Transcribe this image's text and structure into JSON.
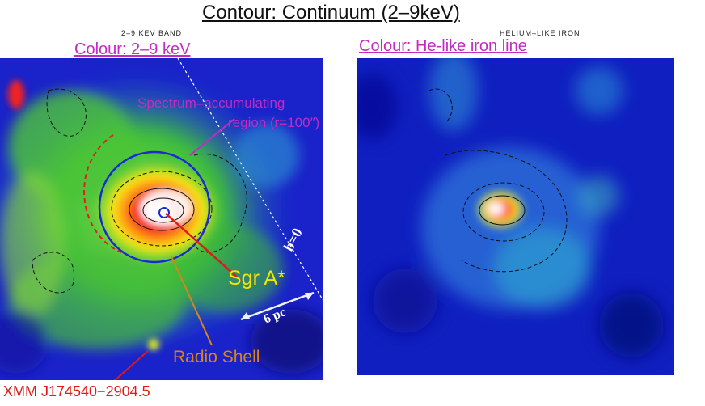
{
  "figure": {
    "title": "Contour: Continuum (2–9keV)",
    "left_panel": {
      "caption": "2–9 KEV BAND",
      "colour_label": "Colour: 2–9 keV",
      "annotations": {
        "region_line1": "Spectrum–accumulating",
        "region_line2": "region (r=100″)",
        "sgr_a": "Sgr A*",
        "radio_shell": "Radio Shell",
        "xmm_source": "XMM J174540−2904.5",
        "b_zero": "b=0",
        "scale": "6 pc"
      }
    },
    "right_panel": {
      "caption": "HELIUM–LIKE IRON",
      "colour_label": "Colour: He-like iron line"
    },
    "colors": {
      "annotation_magenta": "#c22cc2",
      "sgr_yellow": "#f5e400",
      "radio_orange": "#d9831a",
      "xmm_red": "#e01818",
      "region_blue": "#1a2bd0"
    }
  }
}
